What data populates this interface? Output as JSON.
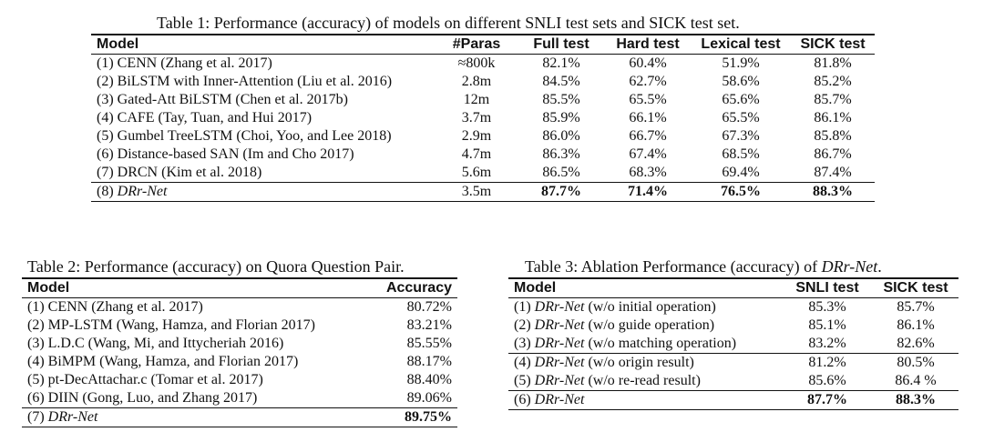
{
  "table1": {
    "caption": "Table 1: Performance (accuracy) of models on different SNLI test sets and SICK test set.",
    "headers": [
      "Model",
      "#Paras",
      "Full test",
      "Hard test",
      "Lexical test",
      "SICK test"
    ],
    "rows": [
      {
        "pre": "(1) CENN (Zhang et al. 2017)",
        "em": "",
        "post": "",
        "cells": [
          "≈800k",
          "82.1%",
          "60.4%",
          "51.9%",
          "81.8%"
        ]
      },
      {
        "pre": "(2) BiLSTM with Inner-Attention (Liu et al. 2016)",
        "em": "",
        "post": "",
        "cells": [
          "2.8m",
          "84.5%",
          "62.7%",
          "58.6%",
          "85.2%"
        ]
      },
      {
        "pre": "(3) Gated-Att BiLSTM (Chen et al. 2017b)",
        "em": "",
        "post": "",
        "cells": [
          "12m",
          "85.5%",
          "65.5%",
          "65.6%",
          "85.7%"
        ]
      },
      {
        "pre": "(4) CAFE (Tay, Tuan, and Hui 2017)",
        "em": "",
        "post": "",
        "cells": [
          "3.7m",
          "85.9%",
          "66.1%",
          "65.5%",
          "86.1%"
        ]
      },
      {
        "pre": "(5) Gumbel TreeLSTM (Choi, Yoo, and Lee 2018)",
        "em": "",
        "post": "",
        "cells": [
          "2.9m",
          "86.0%",
          "66.7%",
          "67.3%",
          "85.8%"
        ]
      },
      {
        "pre": "(6) Distance-based SAN (Im and Cho 2017)",
        "em": "",
        "post": "",
        "cells": [
          "4.7m",
          "86.3%",
          "67.4%",
          "68.5%",
          "86.7%"
        ]
      },
      {
        "pre": "(7) DRCN (Kim et al. 2018)",
        "em": "",
        "post": "",
        "cells": [
          "5.6m",
          "86.5%",
          "68.3%",
          "69.4%",
          "87.4%"
        ]
      },
      {
        "pre": "(8) ",
        "em": "DRr-Net",
        "post": "",
        "cells": [
          "3.5m",
          "87.7%",
          "71.4%",
          "76.5%",
          "88.3%"
        ]
      }
    ]
  },
  "table2": {
    "caption": "Table 2: Performance (accuracy) on Quora Question Pair.",
    "headers": [
      "Model",
      "Accuracy"
    ],
    "rows": [
      {
        "pre": "(1) CENN (Zhang et al. 2017)",
        "em": "",
        "post": "",
        "cells": [
          "80.72%"
        ]
      },
      {
        "pre": "(2) MP-LSTM (Wang, Hamza, and Florian 2017)",
        "em": "",
        "post": "",
        "cells": [
          "83.21%"
        ]
      },
      {
        "pre": "(3) L.D.C (Wang, Mi, and Ittycheriah 2016)",
        "em": "",
        "post": "",
        "cells": [
          "85.55%"
        ]
      },
      {
        "pre": "(4) BiMPM (Wang, Hamza, and Florian 2017)",
        "em": "",
        "post": "",
        "cells": [
          "88.17%"
        ]
      },
      {
        "pre": "(5) pt-DecAttachar.c (Tomar et al. 2017)",
        "em": "",
        "post": "",
        "cells": [
          "88.40%"
        ]
      },
      {
        "pre": "(6) DIIN (Gong, Luo, and Zhang 2017)",
        "em": "",
        "post": "",
        "cells": [
          "89.06%"
        ]
      },
      {
        "pre": "(7) ",
        "em": "DRr-Net",
        "post": "",
        "cells": [
          "89.75%"
        ]
      }
    ]
  },
  "table3": {
    "caption_pre": "Table 3: Ablation Performance (accuracy) of ",
    "caption_em": "DRr-Net",
    "caption_post": ".",
    "headers": [
      "Model",
      "SNLI test",
      "SICK test"
    ],
    "rows": [
      {
        "pre": "(1) ",
        "em": "DRr-Net",
        "post": " (w/o initial operation)",
        "cells": [
          "85.3%",
          "85.7%"
        ]
      },
      {
        "pre": "(2) ",
        "em": "DRr-Net",
        "post": " (w/o guide operation)",
        "cells": [
          "85.1%",
          "86.1%"
        ]
      },
      {
        "pre": "(3) ",
        "em": "DRr-Net",
        "post": " (w/o matching operation)",
        "cells": [
          "83.2%",
          "82.6%"
        ]
      },
      {
        "pre": "(4) ",
        "em": "DRr-Net",
        "post": " (w/o origin result)",
        "cells": [
          "81.2%",
          "80.5%"
        ]
      },
      {
        "pre": "(5) ",
        "em": "DRr-Net",
        "post": " (w/o re-read result)",
        "cells": [
          "85.6%",
          "86.4 %"
        ]
      },
      {
        "pre": "(6) ",
        "em": "DRr-Net",
        "post": "",
        "cells": [
          "87.7%",
          "88.3%"
        ]
      }
    ]
  }
}
